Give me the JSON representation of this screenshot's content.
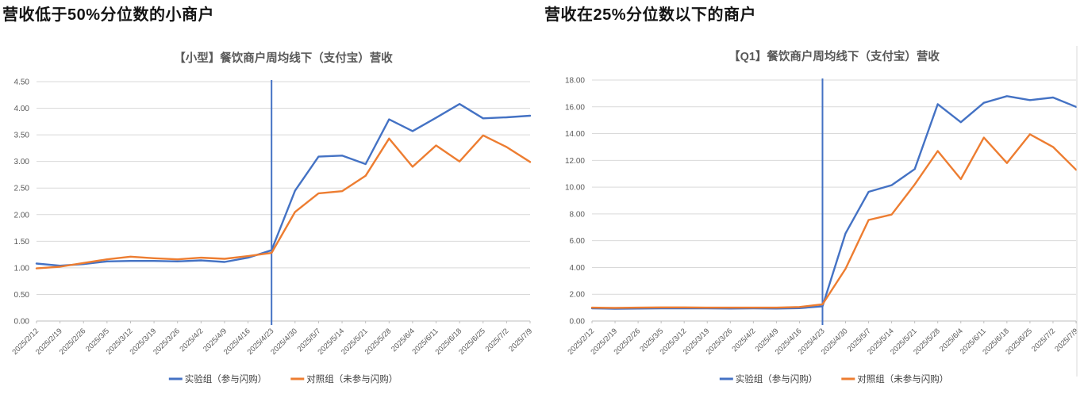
{
  "panels": [
    {
      "heading": "营收低于50%分位数的小商户"
    },
    {
      "heading": "营收在25%分位数以下的商户"
    }
  ],
  "colors": {
    "treatment_blue": "#4472C4",
    "control_orange": "#ED7D31",
    "gridline_gray": "#D9D9D9",
    "axis_gray": "#BFBFBF",
    "label_gray": "#595959"
  },
  "chart_data": [
    {
      "type": "line",
      "title": "【小型】餐饮商户周均线下（支付宝）营收",
      "categories": [
        "2025/2/12",
        "2025/2/19",
        "2025/2/26",
        "2025/3/5",
        "2025/3/12",
        "2025/3/19",
        "2025/3/26",
        "2025/4/2",
        "2025/4/9",
        "2025/4/16",
        "2025/4/23",
        "2025/4/30",
        "2025/5/7",
        "2025/5/14",
        "2025/5/21",
        "2025/5/28",
        "2025/6/4",
        "2025/6/11",
        "2025/6/18",
        "2025/6/25",
        "2025/7/2",
        "2025/7/9"
      ],
      "series": [
        {
          "name": "实验组（参与闪购）",
          "color": "#4472C4",
          "values": [
            1.08,
            1.04,
            1.07,
            1.12,
            1.13,
            1.13,
            1.12,
            1.14,
            1.11,
            1.19,
            1.33,
            2.45,
            3.09,
            3.11,
            2.95,
            3.79,
            3.57,
            3.82,
            4.08,
            3.81,
            3.83,
            3.86
          ]
        },
        {
          "name": "对照组（未参与闪购）",
          "color": "#ED7D31",
          "values": [
            0.99,
            1.02,
            1.09,
            1.16,
            1.21,
            1.18,
            1.16,
            1.19,
            1.17,
            1.22,
            1.28,
            2.05,
            2.4,
            2.44,
            2.73,
            3.43,
            2.9,
            3.3,
            3.0,
            3.49,
            3.27,
            2.99
          ]
        }
      ],
      "ylim": [
        0,
        4.5
      ],
      "ytick_step": 0.5,
      "ytick_decimals": 2,
      "grid": true,
      "legend_position": "bottom",
      "annotation": {
        "type": "vline",
        "at_category": "2025/4/23",
        "color": "#4472C4"
      }
    },
    {
      "type": "line",
      "title": "【Q1】餐饮商户周均线下（支付宝）营收",
      "categories": [
        "2025/2/12",
        "2025/2/19",
        "2025/2/26",
        "2025/3/5",
        "2025/3/12",
        "2025/3/19",
        "2025/3/26",
        "2025/4/2",
        "2025/4/9",
        "2025/4/16",
        "2025/4/23",
        "2025/4/30",
        "2025/5/7",
        "2025/5/14",
        "2025/5/21",
        "2025/5/28",
        "2025/6/4",
        "2025/6/11",
        "2025/6/18",
        "2025/6/25",
        "2025/7/2",
        "2025/7/9"
      ],
      "series": [
        {
          "name": "实验组（参与闪购）",
          "color": "#4472C4",
          "values": [
            0.95,
            0.92,
            0.93,
            0.95,
            0.95,
            0.94,
            0.93,
            0.94,
            0.93,
            0.96,
            1.1,
            6.55,
            9.65,
            10.15,
            11.35,
            16.2,
            14.85,
            16.3,
            16.8,
            16.5,
            16.7,
            16.0
          ]
        },
        {
          "name": "对照组（未参与闪购）",
          "color": "#ED7D31",
          "values": [
            1.0,
            0.98,
            1.0,
            1.02,
            1.02,
            1.0,
            1.0,
            1.0,
            1.0,
            1.05,
            1.25,
            3.9,
            7.55,
            7.95,
            10.2,
            12.7,
            10.6,
            13.7,
            11.8,
            13.95,
            13.0,
            11.3
          ]
        }
      ],
      "ylim": [
        0,
        18
      ],
      "ytick_step": 2,
      "ytick_decimals": 2,
      "grid": true,
      "legend_position": "bottom",
      "annotation": {
        "type": "vline",
        "at_category": "2025/4/23",
        "color": "#4472C4"
      }
    }
  ]
}
